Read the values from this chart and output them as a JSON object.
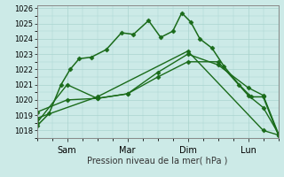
{
  "xlabel": "Pression niveau de la mer( hPa )",
  "ylim": [
    1017.5,
    1026.2
  ],
  "yticks": [
    1018,
    1019,
    1020,
    1021,
    1022,
    1023,
    1024,
    1025,
    1026
  ],
  "xtick_labels": [
    "Sam",
    "Mar",
    "Dim",
    "Lun"
  ],
  "xtick_positions": [
    1,
    3,
    5,
    7
  ],
  "xlim": [
    0,
    8
  ],
  "bg_color": "#cceae7",
  "grid_color": "#aad4d0",
  "line_color": "#1a6b1a",
  "lines": [
    {
      "x": [
        0.0,
        0.4,
        0.8,
        1.1,
        1.4,
        1.8,
        2.3,
        2.8,
        3.2,
        3.7,
        4.1,
        4.5,
        4.8,
        5.1,
        5.4,
        5.8,
        6.2,
        6.7,
        7.1,
        7.5,
        8.0
      ],
      "y": [
        1018.3,
        1019.1,
        1021.0,
        1022.0,
        1022.7,
        1022.8,
        1023.3,
        1024.4,
        1024.3,
        1025.2,
        1024.1,
        1024.5,
        1025.7,
        1025.1,
        1024.0,
        1023.4,
        1022.2,
        1021.0,
        1020.2,
        1020.2,
        1017.7
      ],
      "marker": "D",
      "markersize": 2.5,
      "linewidth": 1.1
    },
    {
      "x": [
        0.0,
        1.0,
        2.0,
        3.0,
        4.0,
        5.0,
        6.0,
        7.0,
        7.5,
        8.0
      ],
      "y": [
        1018.5,
        1021.0,
        1020.1,
        1020.4,
        1021.5,
        1022.5,
        1022.5,
        1020.3,
        1019.5,
        1017.8
      ],
      "marker": "D",
      "markersize": 2.5,
      "linewidth": 1.0
    },
    {
      "x": [
        0.0,
        1.0,
        2.0,
        3.0,
        4.0,
        5.0,
        6.0,
        7.0,
        7.5,
        8.0
      ],
      "y": [
        1019.2,
        1020.0,
        1020.1,
        1020.4,
        1021.8,
        1023.0,
        1022.3,
        1020.8,
        1020.3,
        1017.8
      ],
      "marker": "D",
      "markersize": 2.5,
      "linewidth": 1.0
    },
    {
      "x": [
        0.0,
        2.0,
        5.0,
        7.5,
        8.0
      ],
      "y": [
        1018.8,
        1020.2,
        1023.2,
        1018.0,
        1017.7
      ],
      "marker": "D",
      "markersize": 2.5,
      "linewidth": 1.0
    }
  ]
}
